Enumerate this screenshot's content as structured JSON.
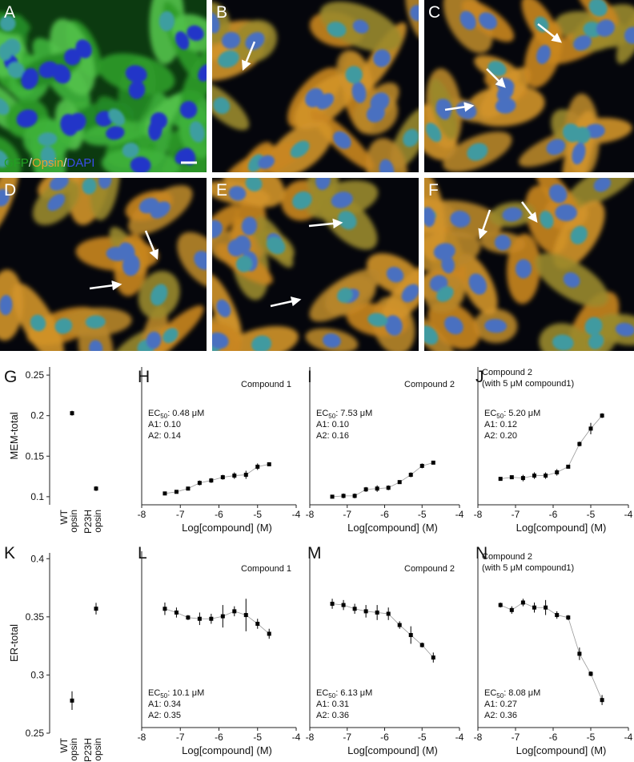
{
  "microscopy_panels": [
    {
      "label": "A",
      "legend": [
        {
          "text": "GFP",
          "color": "#22a022"
        },
        {
          "text": "/",
          "color": "#e8e8e8"
        },
        {
          "text": "Opsin",
          "color": "#e8a030"
        },
        {
          "text": "/",
          "color": "#e8e8e8"
        },
        {
          "text": "DAPI",
          "color": "#3a4ce8"
        }
      ]
    },
    {
      "label": "B"
    },
    {
      "label": "C"
    },
    {
      "label": "D"
    },
    {
      "label": "E"
    },
    {
      "label": "F"
    }
  ],
  "chart_data": [
    {
      "type": "category_scatter",
      "panel": "G",
      "ylabel": "MEM-total",
      "categories": [
        [
          "WT",
          "opsin"
        ],
        [
          "P23H",
          "opsin"
        ]
      ],
      "values": [
        0.203,
        0.11
      ],
      "errors": [
        0.003,
        0.003
      ],
      "ylim": [
        0.09,
        0.26
      ],
      "yticks": [
        0.1,
        0.15,
        0.2,
        0.25
      ],
      "color": "#000000"
    },
    {
      "type": "scatter",
      "panel": "H",
      "note": [
        "Compound 1"
      ],
      "ec50": {
        "label": "EC",
        "sub": "50",
        "text": ": 0.48 μM"
      },
      "a1": "A1: 0.10",
      "a2": "A2: 0.14",
      "xlabel": "Log[compound] (M)",
      "x": [
        -7.4,
        -7.1,
        -6.8,
        -6.5,
        -6.2,
        -5.9,
        -5.6,
        -5.3,
        -5.0,
        -4.7
      ],
      "values": [
        0.104,
        0.106,
        0.11,
        0.117,
        0.12,
        0.124,
        0.126,
        0.127,
        0.137,
        0.14
      ],
      "errors": [
        0.002,
        0.002,
        0.002,
        0.003,
        0.003,
        0.003,
        0.004,
        0.005,
        0.004,
        0.002
      ],
      "xlim": [
        -8,
        -4
      ],
      "xticks": [
        -8,
        -7,
        -6,
        -5,
        -4
      ],
      "ylim": [
        0.09,
        0.26
      ],
      "color": "#000000"
    },
    {
      "type": "scatter",
      "panel": "I",
      "note": [
        "Compound 2"
      ],
      "ec50": {
        "label": "EC",
        "sub": "50",
        "text": ": 7.53 μM"
      },
      "a1": "A1: 0.10",
      "a2": "A2: 0.16",
      "xlabel": "Log[compound] (M)",
      "x": [
        -7.4,
        -7.1,
        -6.8,
        -6.5,
        -6.2,
        -5.9,
        -5.6,
        -5.3,
        -5.0,
        -4.7
      ],
      "values": [
        0.1,
        0.101,
        0.101,
        0.109,
        0.11,
        0.111,
        0.118,
        0.127,
        0.138,
        0.142
      ],
      "errors": [
        0.002,
        0.003,
        0.003,
        0.003,
        0.004,
        0.003,
        0.002,
        0.003,
        0.003,
        0.002
      ],
      "xlim": [
        -8,
        -4
      ],
      "xticks": [
        -8,
        -7,
        -6,
        -5,
        -4
      ],
      "ylim": [
        0.09,
        0.26
      ],
      "color": "#000000"
    },
    {
      "type": "scatter",
      "panel": "J",
      "note": [
        "Compound 2",
        "(with 5 μM compound1)"
      ],
      "ec50": {
        "label": "EC",
        "sub": "50",
        "text": ": 5.20 μM"
      },
      "a1": "A1: 0.12",
      "a2": "A2: 0.20",
      "xlabel": "Log[compound] (M)",
      "x": [
        -7.4,
        -7.1,
        -6.8,
        -6.5,
        -6.2,
        -5.9,
        -5.6,
        -5.3,
        -5.0,
        -4.7
      ],
      "values": [
        0.122,
        0.124,
        0.123,
        0.126,
        0.126,
        0.13,
        0.137,
        0.165,
        0.184,
        0.2
      ],
      "errors": [
        0.002,
        0.002,
        0.004,
        0.004,
        0.004,
        0.004,
        0.002,
        0.003,
        0.007,
        0.003
      ],
      "xlim": [
        -8,
        -4
      ],
      "xticks": [
        -8,
        -7,
        -6,
        -5,
        -4
      ],
      "ylim": [
        0.09,
        0.26
      ],
      "color": "#000000"
    },
    {
      "type": "category_scatter",
      "panel": "K",
      "ylabel": "ER-total",
      "categories": [
        [
          "WT",
          "opsin"
        ],
        [
          "P23H",
          "opsin"
        ]
      ],
      "values": [
        0.278,
        0.357
      ],
      "errors": [
        0.008,
        0.005
      ],
      "ylim": [
        0.25,
        0.405
      ],
      "yticks": [
        0.25,
        0.3,
        0.35,
        0.4
      ],
      "color": "#000000"
    },
    {
      "type": "scatter",
      "panel": "L",
      "note": [
        "Compound 1"
      ],
      "ec50": {
        "label": "EC",
        "sub": "50",
        "text": ": 10.1 μM"
      },
      "a1": "A1: 0.34",
      "a2": "A2: 0.35",
      "xlabel": "Log[compound] (M)",
      "x": [
        -7.4,
        -7.1,
        -6.8,
        -6.5,
        -6.2,
        -5.9,
        -5.6,
        -5.3,
        -5.0,
        -4.7
      ],
      "values": [
        0.359,
        0.356,
        0.352,
        0.351,
        0.351,
        0.353,
        0.357,
        0.354,
        0.347,
        0.339
      ],
      "errors": [
        0.005,
        0.004,
        0.002,
        0.005,
        0.004,
        0.009,
        0.004,
        0.013,
        0.004,
        0.004
      ],
      "xlim": [
        -8,
        -4
      ],
      "xticks": [
        -8,
        -7,
        -6,
        -5,
        -4
      ],
      "ylim": [
        0.264,
        0.405
      ],
      "color": "#000000"
    },
    {
      "type": "scatter",
      "panel": "M",
      "note": [
        "Compound 2"
      ],
      "ec50": {
        "label": "EC",
        "sub": "50",
        "text": ": 6.13 μM"
      },
      "a1": "A1: 0.31",
      "a2": "A2: 0.36",
      "xlabel": "Log[compound] (M)",
      "x": [
        -7.4,
        -7.1,
        -6.8,
        -6.5,
        -6.2,
        -5.9,
        -5.6,
        -5.3,
        -5.0,
        -4.7
      ],
      "values": [
        0.363,
        0.362,
        0.359,
        0.357,
        0.356,
        0.355,
        0.346,
        0.338,
        0.33,
        0.32
      ],
      "errors": [
        0.004,
        0.004,
        0.004,
        0.005,
        0.006,
        0.005,
        0.003,
        0.007,
        0.002,
        0.004
      ],
      "xlim": [
        -8,
        -4
      ],
      "xticks": [
        -8,
        -7,
        -6,
        -5,
        -4
      ],
      "ylim": [
        0.264,
        0.405
      ],
      "color": "#000000"
    },
    {
      "type": "scatter",
      "panel": "N",
      "note": [
        "Compound 2",
        "(with 5 μM compound1)"
      ],
      "ec50": {
        "label": "EC",
        "sub": "50",
        "text": ": 8.08 μM"
      },
      "a1": "A1: 0.27",
      "a2": "A2: 0.36",
      "xlabel": "Log[compound] (M)",
      "x": [
        -7.4,
        -7.1,
        -6.8,
        -6.5,
        -6.2,
        -5.9,
        -5.6,
        -5.3,
        -5.0,
        -4.7
      ],
      "values": [
        0.362,
        0.358,
        0.364,
        0.36,
        0.36,
        0.354,
        0.352,
        0.323,
        0.307,
        0.286
      ],
      "errors": [
        0.002,
        0.003,
        0.003,
        0.004,
        0.006,
        0.003,
        0.002,
        0.005,
        0.002,
        0.004
      ],
      "xlim": [
        -8,
        -4
      ],
      "xticks": [
        -8,
        -7,
        -6,
        -5,
        -4
      ],
      "ylim": [
        0.264,
        0.405
      ],
      "color": "#000000"
    }
  ]
}
